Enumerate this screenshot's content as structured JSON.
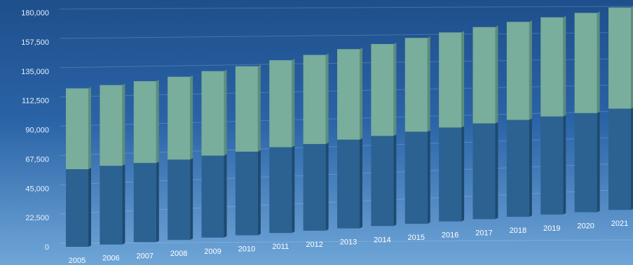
{
  "chart_data": {
    "type": "bar",
    "stacked": true,
    "title": "",
    "xlabel": "",
    "ylabel": "",
    "ylim": [
      0,
      180000
    ],
    "y_ticks": [
      "0",
      "22,500",
      "45,000",
      "67,500",
      "90,000",
      "112,500",
      "135,000",
      "157,500",
      "180,000"
    ],
    "categories": [
      "2005",
      "2006",
      "2007",
      "2008",
      "2009",
      "2010",
      "2011",
      "2012",
      "2013",
      "2014",
      "2015",
      "2016",
      "2017",
      "2018",
      "2019",
      "2020",
      "2021"
    ],
    "series": [
      {
        "values": [
          60000,
          61500,
          62500,
          64000,
          66000,
          68000,
          70500,
          72000,
          74500,
          76500,
          79000,
          81500,
          84000,
          86000,
          88000,
          90000,
          93000
        ],
        "color": "#2b6291"
      },
      {
        "values": [
          62500,
          63000,
          64500,
          66000,
          68000,
          69500,
          71500,
          74000,
          76000,
          78000,
          80500,
          82500,
          84500,
          87000,
          89000,
          91000,
          93000
        ],
        "color": "#79ad9c"
      }
    ],
    "grid": true,
    "legend": "none"
  }
}
